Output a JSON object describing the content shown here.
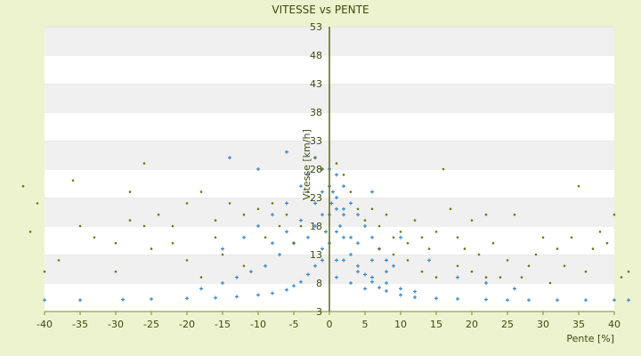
{
  "chart_data": {
    "type": "scatter",
    "title": "VITESSE vs PENTE",
    "xlabel": "Pente [%]",
    "ylabel": "Vitesse [km/h]",
    "xlim": [
      -40,
      40
    ],
    "ylim": [
      3,
      53
    ],
    "x_ticks": [
      -40,
      -35,
      -30,
      -25,
      -20,
      -15,
      -10,
      -5,
      0,
      5,
      10,
      15,
      20,
      25,
      30,
      35,
      40
    ],
    "y_ticks": [
      3,
      8,
      13,
      18,
      23,
      28,
      33,
      38,
      43,
      48,
      53
    ],
    "grid": "horizontal bands",
    "legend": "none",
    "series": [
      {
        "color": "#3a86c8",
        "marker": "plus",
        "description_points": [
          [
            -40,
            5.0
          ],
          [
            -35,
            5.0
          ],
          [
            -29,
            5.1
          ],
          [
            -25,
            5.2
          ],
          [
            -20,
            5.3
          ],
          [
            -16,
            5.4
          ],
          [
            -13,
            5.6
          ],
          [
            -10,
            5.9
          ],
          [
            -8,
            6.2
          ],
          [
            -6,
            6.8
          ],
          [
            -5,
            7.5
          ],
          [
            -4,
            8.2
          ],
          [
            -3,
            9.5
          ],
          [
            -2,
            11
          ],
          [
            -1,
            14
          ],
          [
            -0.5,
            17
          ],
          [
            0,
            20
          ],
          [
            0.3,
            22
          ],
          [
            0.5,
            24
          ],
          [
            1,
            21
          ],
          [
            1.5,
            18
          ],
          [
            2,
            16
          ],
          [
            3,
            13
          ],
          [
            4,
            11
          ],
          [
            5,
            9.5
          ],
          [
            6,
            8.2
          ],
          [
            7,
            7.2
          ],
          [
            8,
            6.6
          ],
          [
            10,
            5.9
          ],
          [
            12,
            5.5
          ],
          [
            15,
            5.3
          ],
          [
            18,
            5.2
          ],
          [
            22,
            5.1
          ],
          [
            25,
            5.0
          ],
          [
            28,
            5.0
          ],
          [
            32,
            5.0
          ],
          [
            36,
            5.0
          ],
          [
            40,
            5.0
          ],
          [
            42,
            5.0
          ],
          [
            -2,
            30
          ],
          [
            -1,
            28
          ],
          [
            -3,
            27
          ],
          [
            1,
            27
          ],
          [
            2,
            25
          ],
          [
            -4,
            25
          ],
          [
            -6,
            22
          ],
          [
            -8,
            20
          ],
          [
            -10,
            18
          ],
          [
            -12,
            16
          ],
          [
            -15,
            14
          ],
          [
            3,
            22
          ],
          [
            4,
            20
          ],
          [
            5,
            18
          ],
          [
            6,
            16
          ],
          [
            7,
            14
          ],
          [
            8,
            12
          ],
          [
            9,
            11
          ],
          [
            -5,
            15
          ],
          [
            -7,
            13
          ],
          [
            -9,
            11
          ],
          [
            -11,
            10
          ],
          [
            -13,
            9
          ],
          [
            -15,
            8
          ],
          [
            -18,
            7
          ],
          [
            2,
            12
          ],
          [
            4,
            10
          ],
          [
            6,
            9
          ],
          [
            8,
            8
          ],
          [
            10,
            7
          ],
          [
            12,
            6.5
          ],
          [
            1,
            9
          ],
          [
            3,
            8
          ],
          [
            5,
            7
          ],
          [
            0,
            15
          ],
          [
            0,
            25
          ],
          [
            0,
            28
          ],
          [
            -1,
            20
          ],
          [
            1,
            17
          ],
          [
            -2,
            18
          ],
          [
            2,
            20
          ],
          [
            -3,
            16
          ],
          [
            3,
            16
          ],
          [
            -4,
            19
          ],
          [
            4,
            15
          ],
          [
            -6,
            17
          ],
          [
            6,
            12
          ],
          [
            -8,
            15
          ],
          [
            8,
            10
          ],
          [
            -1,
            24
          ],
          [
            1,
            23
          ],
          [
            -2,
            22
          ],
          [
            2,
            21
          ],
          [
            -1,
            12
          ],
          [
            1,
            12
          ],
          [
            -14,
            30
          ],
          [
            -10,
            28
          ],
          [
            -6,
            31
          ],
          [
            6,
            24
          ],
          [
            10,
            16
          ],
          [
            14,
            12
          ],
          [
            18,
            9
          ],
          [
            22,
            8
          ],
          [
            26,
            7
          ]
        ]
      },
      {
        "color": "#6b7a10",
        "marker": "dot",
        "description_points": [
          [
            -43,
            25
          ],
          [
            -41,
            22
          ],
          [
            -42,
            17
          ],
          [
            -40,
            10
          ],
          [
            -38,
            12
          ],
          [
            -36,
            26
          ],
          [
            -35,
            18
          ],
          [
            -33,
            16
          ],
          [
            -30,
            15
          ],
          [
            -28,
            24
          ],
          [
            -26,
            29
          ],
          [
            -26,
            18
          ],
          [
            -24,
            20
          ],
          [
            -22,
            18
          ],
          [
            -20,
            22
          ],
          [
            -18,
            24
          ],
          [
            -16,
            19
          ],
          [
            -14,
            22
          ],
          [
            -12,
            20
          ],
          [
            -10,
            21
          ],
          [
            -9,
            16
          ],
          [
            -8,
            22
          ],
          [
            -7,
            18
          ],
          [
            -6,
            20
          ],
          [
            -5,
            15
          ],
          [
            -4,
            18
          ],
          [
            -3,
            24
          ],
          [
            -2,
            30
          ],
          [
            -1,
            28
          ],
          [
            -15,
            13
          ],
          [
            -20,
            12
          ],
          [
            -25,
            14
          ],
          [
            -30,
            10
          ],
          [
            -18,
            9
          ],
          [
            -12,
            11
          ],
          [
            -16,
            16
          ],
          [
            -22,
            15
          ],
          [
            -28,
            19
          ],
          [
            1,
            29
          ],
          [
            2,
            27
          ],
          [
            3,
            24
          ],
          [
            4,
            21
          ],
          [
            5,
            19
          ],
          [
            6,
            21
          ],
          [
            7,
            18
          ],
          [
            8,
            20
          ],
          [
            9,
            16
          ],
          [
            10,
            17
          ],
          [
            11,
            15
          ],
          [
            12,
            19
          ],
          [
            13,
            16
          ],
          [
            14,
            14
          ],
          [
            15,
            17
          ],
          [
            16,
            28
          ],
          [
            17,
            21
          ],
          [
            18,
            16
          ],
          [
            19,
            14
          ],
          [
            20,
            19
          ],
          [
            21,
            13
          ],
          [
            22,
            20
          ],
          [
            23,
            15
          ],
          [
            24,
            9
          ],
          [
            25,
            12
          ],
          [
            26,
            20
          ],
          [
            28,
            11
          ],
          [
            29,
            13
          ],
          [
            30,
            16
          ],
          [
            32,
            14
          ],
          [
            33,
            11
          ],
          [
            34,
            16
          ],
          [
            35,
            25
          ],
          [
            36,
            10
          ],
          [
            37,
            14
          ],
          [
            38,
            17
          ],
          [
            39,
            15
          ],
          [
            40,
            20
          ],
          [
            41,
            9
          ],
          [
            42,
            10
          ],
          [
            15,
            9
          ],
          [
            18,
            11
          ],
          [
            20,
            10
          ],
          [
            22,
            9
          ],
          [
            27,
            9
          ],
          [
            31,
            8
          ],
          [
            13,
            10
          ],
          [
            11,
            12
          ],
          [
            9,
            13
          ],
          [
            7,
            14
          ]
        ]
      }
    ]
  }
}
